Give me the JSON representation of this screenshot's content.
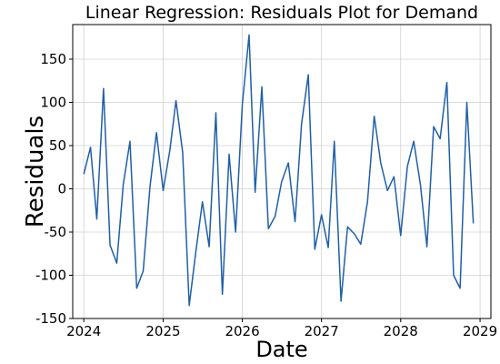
{
  "chart_data": {
    "type": "line",
    "title": "Linear Regression: Residuals Plot for Demand",
    "xlabel": "Date",
    "ylabel": "Residuals",
    "x_axis_type": "date",
    "xlim": [
      "2023-11-11",
      "2029-02-20"
    ],
    "ylim": [
      -150,
      190
    ],
    "x_ticks": [
      "2024",
      "2025",
      "2026",
      "2027",
      "2028",
      "2029"
    ],
    "x_tick_dates": [
      "2024-01-01",
      "2025-01-01",
      "2026-01-01",
      "2027-01-01",
      "2028-01-01",
      "2029-01-01"
    ],
    "y_ticks": [
      -150,
      -100,
      -50,
      0,
      50,
      100,
      150
    ],
    "grid": true,
    "legend": "none",
    "series": [
      {
        "color": "#1f5fa8",
        "x": [
          "2024-01-01",
          "2024-02-01",
          "2024-03-01",
          "2024-04-01",
          "2024-05-01",
          "2024-06-01",
          "2024-07-01",
          "2024-08-01",
          "2024-09-01",
          "2024-10-01",
          "2024-11-01",
          "2024-12-01",
          "2025-01-01",
          "2025-02-01",
          "2025-03-01",
          "2025-04-01",
          "2025-05-01",
          "2025-06-01",
          "2025-07-01",
          "2025-08-01",
          "2025-09-01",
          "2025-10-01",
          "2025-11-01",
          "2025-12-01",
          "2026-01-01",
          "2026-02-01",
          "2026-03-01",
          "2026-04-01",
          "2026-05-01",
          "2026-06-01",
          "2026-07-01",
          "2026-08-01",
          "2026-09-01",
          "2026-10-01",
          "2026-11-01",
          "2026-12-01",
          "2027-01-01",
          "2027-02-01",
          "2027-03-01",
          "2027-04-01",
          "2027-05-01",
          "2027-06-01",
          "2027-07-01",
          "2027-08-01",
          "2027-09-01",
          "2027-10-01",
          "2027-11-01",
          "2027-12-01",
          "2028-01-01",
          "2028-02-01",
          "2028-03-01",
          "2028-04-01",
          "2028-05-01",
          "2028-06-01",
          "2028-07-01",
          "2028-08-01",
          "2028-09-01",
          "2028-10-01",
          "2028-11-01",
          "2028-12-01"
        ],
        "y": [
          17,
          48,
          -35,
          116,
          -65,
          -86,
          5,
          55,
          -115,
          -95,
          2,
          65,
          -2,
          45,
          102,
          42,
          -135,
          -72,
          -15,
          -67,
          88,
          -122,
          40,
          -50,
          98,
          178,
          -4,
          118,
          -46,
          -32,
          8,
          30,
          -38,
          75,
          132,
          -70,
          -30,
          -68,
          55,
          -130,
          -44,
          -52,
          -64,
          -15,
          84,
          30,
          -2,
          14,
          -54,
          26,
          55,
          5,
          -67,
          72,
          58,
          123,
          -100,
          -115,
          100,
          -40
        ]
      }
    ]
  }
}
